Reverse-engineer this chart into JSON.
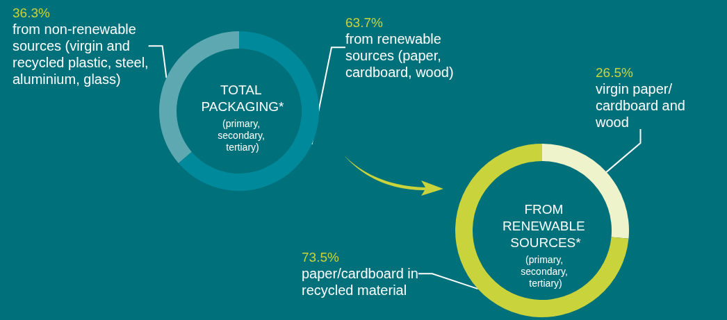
{
  "chart_data": [
    {
      "type": "donut",
      "title": "TOTAL PACKAGING*",
      "subtitle": "(primary, secondary, tertiary)",
      "categories": [
        "from renewable sources (paper, cardboard, wood)",
        "from non-renewable sources (virgin and recycled plastic, steel, aluminium, glass)"
      ],
      "values": [
        63.7,
        36.3
      ],
      "value_labels": [
        "63.7%",
        "36.3%"
      ],
      "colors": [
        "#00899a",
        "#5ea9b1"
      ]
    },
    {
      "type": "donut",
      "title": "FROM RENEWABLE SOURCES*",
      "subtitle": "(primary, secondary, tertiary)",
      "categories": [
        "virgin paper/ cardboard and wood",
        "paper/cardboard in recycled material"
      ],
      "values": [
        26.5,
        73.5
      ],
      "value_labels": [
        "26.5%",
        "73.5%"
      ],
      "colors": [
        "#eef3cc",
        "#c9d33b"
      ]
    }
  ]
}
